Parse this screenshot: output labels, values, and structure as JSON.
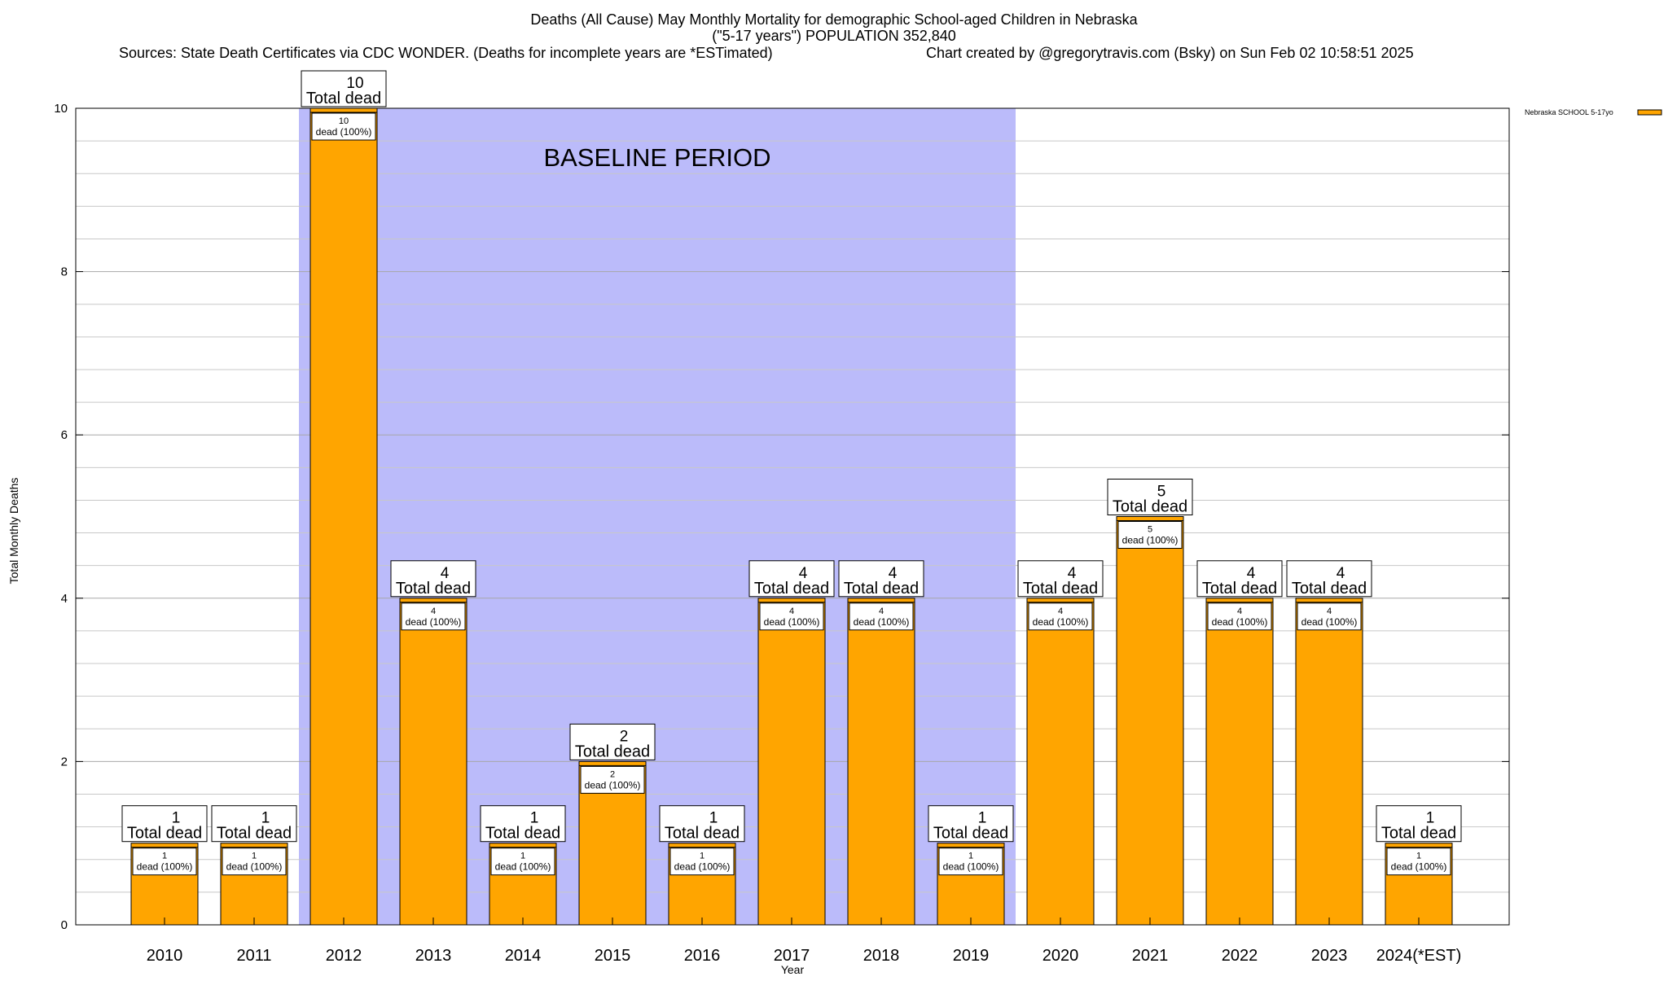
{
  "chart_data": {
    "type": "bar",
    "title_lines": [
      "Deaths (All Cause) May Monthly Mortality for demographic School-aged Children in Nebraska",
      "(\"5-17 years\") POPULATION 352,840"
    ],
    "sources": "Sources: State Death Certificates via CDC WONDER. (Deaths for incomplete years are *ESTimated)",
    "credit": "Chart created by @gregorytravis.com (Bsky) on Sun Feb 02 10:58:51 2025",
    "xlabel": "Year",
    "ylabel": "Total Monthly Deaths",
    "ylim": [
      0,
      10
    ],
    "yticks": [
      "0",
      "2",
      "4",
      "6",
      "8",
      "10"
    ],
    "categories": [
      "2010",
      "2011",
      "2012",
      "2013",
      "2014",
      "2015",
      "2016",
      "2017",
      "2018",
      "2019",
      "2020",
      "2021",
      "2022",
      "2023",
      "2024(*EST)"
    ],
    "series": [
      {
        "name": "Nebraska SCHOOL 5-17yo",
        "color": "#ffa500",
        "values": [
          1,
          1,
          10,
          4,
          1,
          2,
          1,
          4,
          4,
          1,
          4,
          5,
          4,
          4,
          1
        ]
      }
    ],
    "bar_labels": [
      "1",
      "1",
      "10",
      "4",
      "1",
      "2",
      "1",
      "4",
      "4",
      "1",
      "4",
      "5",
      "4",
      "4",
      "1"
    ],
    "total_label_text": "Total dead",
    "inner_label_text": "dead (100%)",
    "baseline": {
      "label": "BASELINE PERIOD",
      "from": "2012",
      "to": "2019",
      "color": "#bbbbfa"
    },
    "legend_position": "top-right",
    "grid": true
  }
}
